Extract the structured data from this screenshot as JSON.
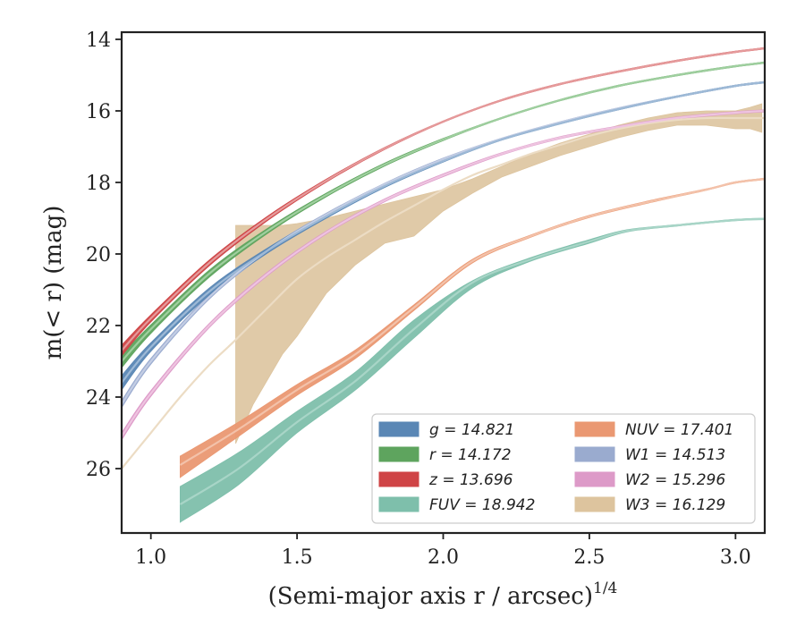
{
  "chart_data": {
    "type": "line",
    "xlabel": "(Semi-major axis r / arcsec)",
    "xlabel_sup": "1/4",
    "ylabel": "m(< r) (mag)",
    "xlim": [
      0.9,
      3.1
    ],
    "ylim": [
      27.8,
      13.8
    ],
    "y_inverted": true,
    "x_ticks": [
      1.0,
      1.5,
      2.0,
      2.5,
      3.0
    ],
    "x_tick_labels": [
      "1.0",
      "1.5",
      "2.0",
      "2.5",
      "3.0"
    ],
    "y_ticks": [
      14,
      16,
      18,
      20,
      22,
      24,
      26
    ],
    "y_tick_labels": [
      "14",
      "16",
      "18",
      "20",
      "22",
      "24",
      "26"
    ],
    "grid": false,
    "legend_position": "lower-right",
    "legend_columns": 2,
    "series": [
      {
        "name": "g",
        "label": "g = 14.821",
        "color": "#5a87b5",
        "fit_color": "#9db9d6",
        "x": [
          0.9,
          1.0,
          1.2,
          1.4,
          1.6,
          1.8,
          2.0,
          2.2,
          2.4,
          2.6,
          2.8,
          3.0,
          3.1
        ],
        "y": [
          23.6,
          22.6,
          21.05,
          19.9,
          18.95,
          18.1,
          17.4,
          16.8,
          16.35,
          15.95,
          15.6,
          15.3,
          15.2
        ],
        "band_lo": [
          23.4,
          22.48,
          20.95,
          19.83,
          18.9,
          18.06,
          17.37,
          16.78,
          16.33,
          15.93,
          15.58,
          15.28,
          15.18
        ],
        "band_hi": [
          23.8,
          22.72,
          21.15,
          19.97,
          19.0,
          18.14,
          17.43,
          16.82,
          16.37,
          15.97,
          15.62,
          15.32,
          15.22
        ]
      },
      {
        "name": "r",
        "label": "r = 14.172",
        "color": "#5ea45e",
        "fit_color": "#9fcf9f",
        "x": [
          0.9,
          1.0,
          1.2,
          1.4,
          1.6,
          1.8,
          2.0,
          2.2,
          2.4,
          2.6,
          2.8,
          3.0,
          3.1
        ],
        "y": [
          23.0,
          22.1,
          20.55,
          19.35,
          18.35,
          17.5,
          16.8,
          16.2,
          15.7,
          15.3,
          15.0,
          14.75,
          14.65
        ],
        "band_lo": [
          22.82,
          21.98,
          20.45,
          19.28,
          18.3,
          17.46,
          16.77,
          16.18,
          15.68,
          15.28,
          14.98,
          14.73,
          14.63
        ],
        "band_hi": [
          23.18,
          22.22,
          20.65,
          19.42,
          18.4,
          17.54,
          16.83,
          16.22,
          15.72,
          15.32,
          15.02,
          14.77,
          14.67
        ]
      },
      {
        "name": "z",
        "label": "z = 13.696",
        "color": "#cf4446",
        "fit_color": "#e59a9b",
        "x": [
          0.9,
          1.0,
          1.2,
          1.4,
          1.6,
          1.8,
          2.0,
          2.2,
          2.4,
          2.6,
          2.8,
          3.0,
          3.1
        ],
        "y": [
          22.7,
          21.8,
          20.25,
          19.0,
          17.95,
          17.05,
          16.3,
          15.7,
          15.25,
          14.9,
          14.6,
          14.35,
          14.25
        ],
        "band_lo": [
          22.55,
          21.7,
          20.17,
          18.94,
          17.91,
          17.02,
          16.28,
          15.68,
          15.23,
          14.88,
          14.58,
          14.33,
          14.23
        ],
        "band_hi": [
          22.85,
          21.9,
          20.33,
          19.06,
          17.99,
          17.08,
          16.32,
          15.72,
          15.27,
          14.92,
          14.62,
          14.37,
          14.27
        ]
      },
      {
        "name": "FUV",
        "label": "FUV = 18.942",
        "color": "#7ebfab",
        "fit_color": "#a8d5c7",
        "x": [
          1.1,
          1.3,
          1.5,
          1.7,
          1.9,
          2.1,
          2.3,
          2.5,
          2.63,
          2.8,
          3.0,
          3.1
        ],
        "y": [
          27.0,
          26.0,
          24.7,
          23.55,
          22.1,
          20.8,
          20.15,
          19.65,
          19.35,
          19.2,
          19.05,
          19.02
        ],
        "band_lo": [
          26.5,
          25.55,
          24.4,
          23.3,
          21.85,
          20.75,
          20.1,
          19.6,
          19.32,
          19.18,
          19.03,
          19.0
        ],
        "band_hi": [
          27.5,
          26.45,
          25.0,
          23.8,
          22.35,
          20.95,
          20.2,
          19.7,
          19.38,
          19.22,
          19.07,
          19.04
        ]
      },
      {
        "name": "NUV",
        "label": "NUV = 17.401",
        "color": "#ea9872",
        "fit_color": "#f3c2aa",
        "x": [
          1.1,
          1.3,
          1.5,
          1.7,
          1.9,
          2.1,
          2.3,
          2.5,
          2.7,
          2.9,
          3.0,
          3.1
        ],
        "y": [
          25.9,
          24.9,
          23.8,
          22.8,
          21.5,
          20.2,
          19.5,
          18.95,
          18.55,
          18.2,
          18.0,
          17.9
        ],
        "band_lo": [
          25.65,
          24.7,
          23.65,
          22.68,
          21.42,
          20.15,
          19.47,
          18.92,
          18.52,
          18.18,
          17.98,
          17.88
        ],
        "band_hi": [
          26.25,
          25.1,
          23.95,
          22.92,
          21.58,
          20.25,
          19.53,
          18.98,
          18.58,
          18.22,
          18.02,
          17.92
        ]
      },
      {
        "name": "W1",
        "label": "W1 = 14.513",
        "color": "#9aabcf",
        "fit_color": "#c3cde4",
        "x": [
          0.9,
          1.0,
          1.2,
          1.4,
          1.6,
          1.8,
          2.0,
          2.2,
          2.4,
          2.6,
          2.8,
          3.0,
          3.1
        ],
        "y": [
          24.2,
          23.0,
          21.2,
          19.9,
          18.9,
          18.05,
          17.35,
          16.78,
          16.32,
          15.93,
          15.6,
          15.3,
          15.2
        ],
        "band_lo": [
          24.1,
          22.92,
          21.14,
          19.85,
          18.86,
          18.02,
          17.32,
          16.76,
          16.3,
          15.91,
          15.58,
          15.28,
          15.18
        ],
        "band_hi": [
          24.3,
          23.08,
          21.26,
          19.95,
          18.94,
          18.08,
          17.38,
          16.8,
          16.34,
          15.95,
          15.62,
          15.32,
          15.22
        ]
      },
      {
        "name": "W2",
        "label": "W2 = 15.296",
        "color": "#dd9ac8",
        "fit_color": "#eec4e0",
        "x": [
          0.9,
          1.0,
          1.2,
          1.4,
          1.6,
          1.8,
          2.0,
          2.2,
          2.4,
          2.6,
          2.8,
          3.0,
          3.1
        ],
        "y": [
          25.1,
          23.9,
          22.0,
          20.55,
          19.4,
          18.5,
          17.8,
          17.2,
          16.75,
          16.45,
          16.2,
          16.05,
          16.0
        ],
        "band_lo": [
          25.0,
          23.82,
          21.94,
          20.5,
          19.36,
          18.46,
          17.76,
          17.17,
          16.72,
          16.42,
          16.17,
          16.02,
          15.97
        ],
        "band_hi": [
          25.2,
          23.98,
          22.06,
          20.6,
          19.44,
          18.54,
          17.84,
          17.23,
          16.78,
          16.48,
          16.23,
          16.08,
          16.03
        ]
      },
      {
        "name": "W3",
        "label": "W3 = 16.129",
        "color": "#ddc49e",
        "fit_color": "#ecdcc4",
        "x": [
          0.9,
          1.0,
          1.1,
          1.2,
          1.29,
          1.4,
          1.5,
          1.6,
          1.7,
          1.8,
          1.9,
          2.0,
          2.1,
          2.2,
          2.3,
          2.4,
          2.5,
          2.6,
          2.7,
          2.8,
          2.9,
          3.0,
          3.1
        ],
        "y": [
          26.0,
          25.0,
          24.0,
          23.1,
          22.4,
          21.5,
          20.7,
          20.1,
          19.6,
          19.1,
          18.65,
          18.2,
          17.8,
          17.5,
          17.2,
          16.95,
          16.7,
          16.5,
          16.35,
          16.25,
          16.2,
          16.2,
          16.2
        ],
        "band_x": [
          1.29,
          1.35,
          1.45,
          1.5,
          1.6,
          1.7,
          1.8,
          1.9,
          2.0,
          2.1,
          2.2,
          2.3,
          2.4,
          2.5,
          2.6,
          2.7,
          2.8,
          2.9,
          3.0,
          3.05,
          3.09
        ],
        "band_lo": [
          19.2,
          19.2,
          19.2,
          19.15,
          19.0,
          18.8,
          18.6,
          18.4,
          18.2,
          17.9,
          17.55,
          17.2,
          16.9,
          16.65,
          16.4,
          16.2,
          16.05,
          16.0,
          16.0,
          15.9,
          15.8
        ],
        "band_hi": [
          25.3,
          24.2,
          22.8,
          22.3,
          21.1,
          20.3,
          19.7,
          19.5,
          18.8,
          18.3,
          17.85,
          17.55,
          17.25,
          17.0,
          16.75,
          16.55,
          16.4,
          16.4,
          16.5,
          16.5,
          16.6
        ]
      }
    ]
  }
}
